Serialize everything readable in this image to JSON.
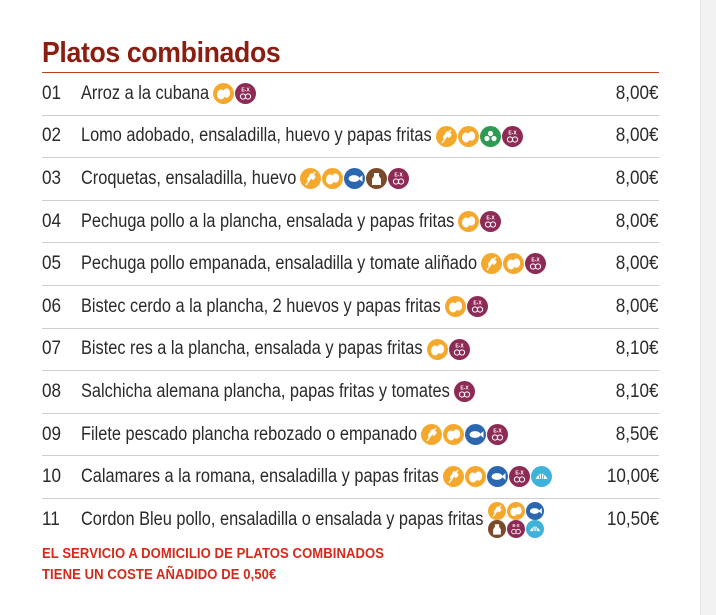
{
  "title": "Platos combinados",
  "items": [
    {
      "num": "01",
      "name": "Arroz a la cubana",
      "price": "8,00€"
    },
    {
      "num": "02",
      "name": "Lomo adobado, ensaladilla, huevo y papas fritas",
      "price": "8,00€"
    },
    {
      "num": "03",
      "name": "Croquetas, ensaladilla, huevo",
      "price": "8,00€"
    },
    {
      "num": "04",
      "name": "Pechuga pollo a la plancha, ensalada y papas fritas",
      "price": "8,00€"
    },
    {
      "num": "05",
      "name": "Pechuga pollo empanada, ensaladilla y tomate aliñado",
      "price": "8,00€"
    },
    {
      "num": "06",
      "name": "Bistec cerdo a la plancha, 2 huevos y papas fritas",
      "price": "8,00€"
    },
    {
      "num": "07",
      "name": "Bistec res a la plancha, ensalada y papas fritas",
      "price": "8,10€"
    },
    {
      "num": "08",
      "name": "Salchicha alemana plancha, papas fritas y tomates",
      "price": "8,10€"
    },
    {
      "num": "09",
      "name": "Filete pescado plancha rebozado o empanado",
      "price": "8,50€"
    },
    {
      "num": "10",
      "name": "Calamares a la romana, ensaladilla y papas fritas",
      "price": "10,00€"
    },
    {
      "num": "11",
      "name": "Cordon Bleu pollo, ensaladilla o ensalada y papas fritas",
      "price": "10,50€"
    }
  ],
  "icon_text": {
    "sulphites": "E-X"
  },
  "colors": {
    "title": "#8a1f11",
    "note": "#d42a1c",
    "gluten": "#f4a92e",
    "egg": "#f4a92e",
    "sulphites": "#8e2a56",
    "fish": "#2b67b1",
    "mustard": "#2f9a53",
    "milk": "#7a4a2a",
    "shellfish": "#3fb2d9"
  },
  "note_lines": [
    "EL SERVICIO A DOMICILIO DE PLATOS COMBINADOS",
    "TIENE UN COSTE AÑADIDO DE 0,50€"
  ]
}
